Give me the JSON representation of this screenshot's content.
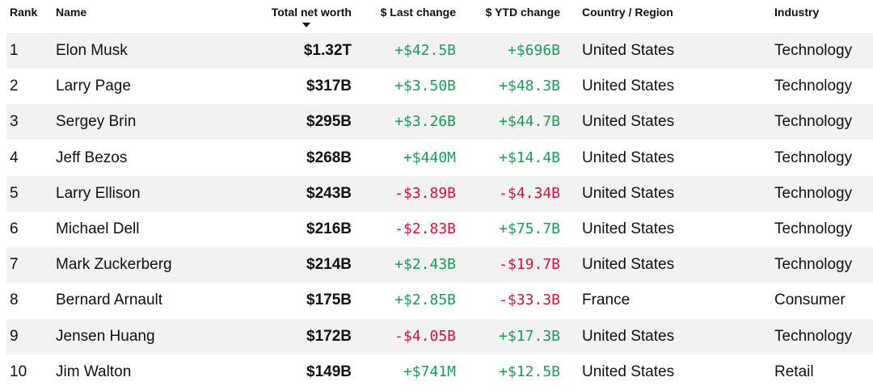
{
  "table": {
    "headers": [
      "Rank",
      "Name",
      "Total net worth",
      "$ Last change",
      "$ YTD change",
      "Country / Region",
      "Industry"
    ],
    "rows": [
      [
        "1",
        "Elon Musk",
        "$1.32T",
        "+$42.5B",
        "+$696B",
        "United States",
        "Technology"
      ],
      [
        "2",
        "Larry Page",
        "$317B",
        "+$3.50B",
        "+$48.3B",
        "United States",
        "Technology"
      ],
      [
        "3",
        "Sergey Brin",
        "$295B",
        "+$3.26B",
        "+$44.7B",
        "United States",
        "Technology"
      ],
      [
        "4",
        "Jeff Bezos",
        "$268B",
        "+$440M",
        "+$14.4B",
        "United States",
        "Technology"
      ],
      [
        "5",
        "Larry Ellison",
        "$243B",
        "-$3.89B",
        "-$4.34B",
        "United States",
        "Technology"
      ],
      [
        "6",
        "Michael Dell",
        "$216B",
        "-$2.83B",
        "+$75.7B",
        "United States",
        "Technology"
      ],
      [
        "7",
        "Mark Zuckerberg",
        "$214B",
        "+$2.43B",
        "-$19.7B",
        "United States",
        "Technology"
      ],
      [
        "8",
        "Bernard Arnault",
        "$175B",
        "+$2.85B",
        "-$33.3B",
        "France",
        "Consumer"
      ],
      [
        "9",
        "Jensen Huang",
        "$172B",
        "-$4.05B",
        "+$17.3B",
        "United States",
        "Technology"
      ],
      [
        "10",
        "Jim Walton",
        "$149B",
        "+$741M",
        "+$12.5B",
        "United States",
        "Retail"
      ]
    ]
  },
  "change_colors": {
    "+": "#1f9a5c",
    "-": "#d2143a"
  }
}
